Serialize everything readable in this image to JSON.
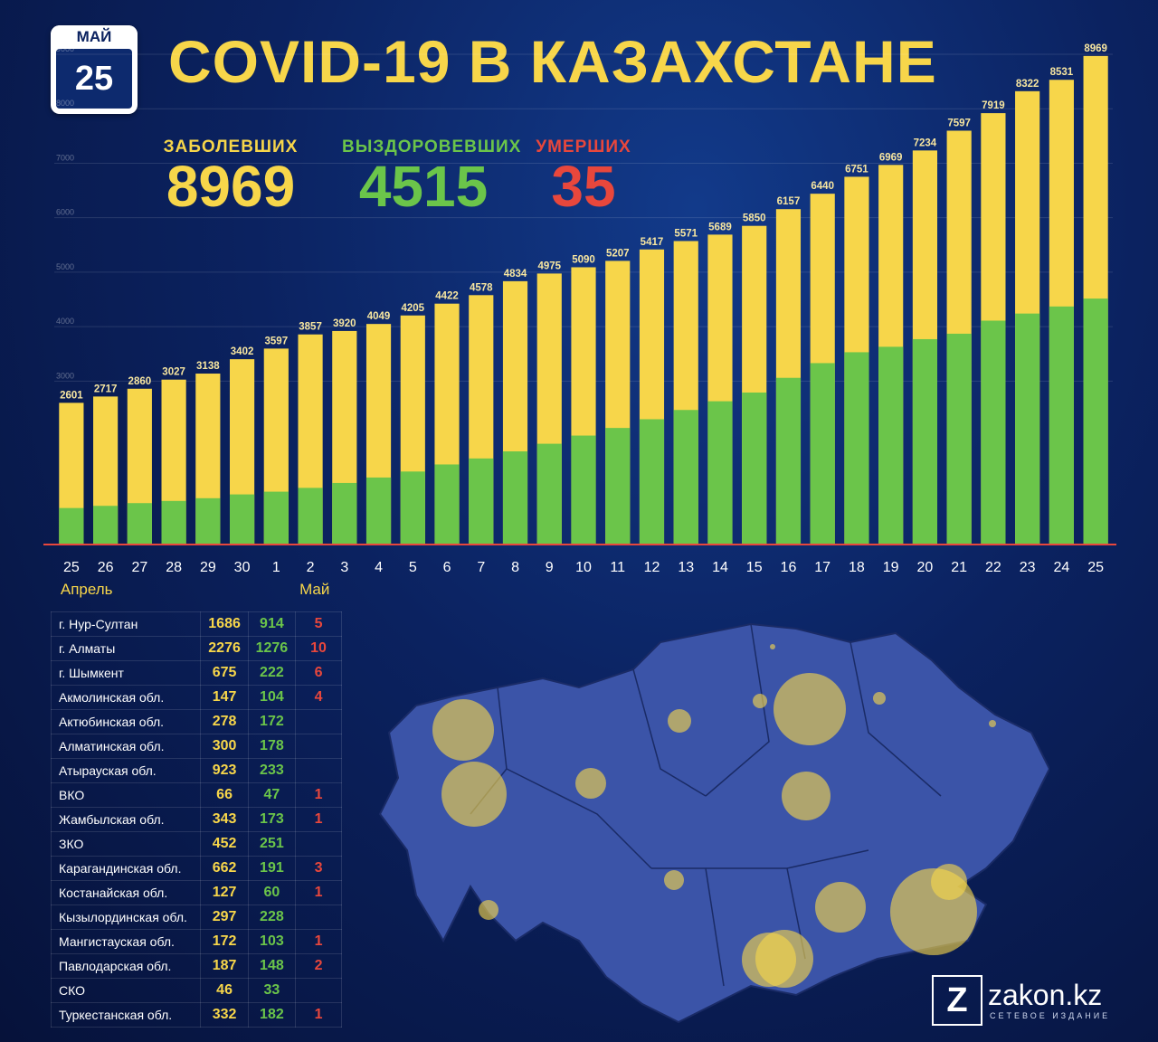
{
  "calendar": {
    "month": "МАЙ",
    "day": "25"
  },
  "title": "COVID-19 В КАЗАХСТАНЕ",
  "stats": {
    "cases": {
      "label": "ЗАБОЛЕВШИХ",
      "value": "8969"
    },
    "recovered": {
      "label": "ВЫЗДОРОВЕВШИХ",
      "value": "4515"
    },
    "deaths": {
      "label": "УМЕРШИХ",
      "value": "35"
    }
  },
  "colors": {
    "cases": "#f7d64a",
    "recovered": "#6bc54a",
    "deaths": "#e8473c",
    "background": "#0b2260"
  },
  "chart_data": {
    "type": "bar",
    "categories": [
      "25",
      "26",
      "27",
      "28",
      "29",
      "30",
      "1",
      "2",
      "3",
      "4",
      "5",
      "6",
      "7",
      "8",
      "9",
      "10",
      "11",
      "12",
      "13",
      "14",
      "15",
      "16",
      "17",
      "18",
      "19",
      "20",
      "21",
      "22",
      "23",
      "24",
      "25"
    ],
    "month_labels": [
      {
        "label": "Апрель",
        "category_index": 0
      },
      {
        "label": "Май",
        "category_index": 7
      }
    ],
    "series": [
      {
        "name": "ЗАБОЛЕВШИХ",
        "values": [
          2601,
          2717,
          2860,
          3027,
          3138,
          3402,
          3597,
          3857,
          3920,
          4049,
          4205,
          4422,
          4578,
          4834,
          4975,
          5090,
          5207,
          5417,
          5571,
          5689,
          5850,
          6157,
          6440,
          6751,
          6969,
          7234,
          7597,
          7919,
          8322,
          8531,
          8969
        ]
      },
      {
        "name": "ВЫЗДОРОВЕВШИХ",
        "values": [
          670,
          710,
          760,
          800,
          850,
          920,
          970,
          1040,
          1130,
          1230,
          1340,
          1470,
          1580,
          1710,
          1850,
          2000,
          2140,
          2300,
          2470,
          2630,
          2790,
          3060,
          3330,
          3530,
          3630,
          3770,
          3870,
          4110,
          4240,
          4370,
          4515
        ]
      }
    ],
    "ylim": [
      0,
      9000
    ],
    "grid_ticks": [
      3000,
      4000,
      5000,
      6000,
      7000,
      8000,
      9000
    ],
    "grid": true
  },
  "table": {
    "rows": [
      {
        "region": "г. Нур-Султан",
        "cases": "1686",
        "recovered": "914",
        "deaths": "5"
      },
      {
        "region": "г. Алматы",
        "cases": "2276",
        "recovered": "1276",
        "deaths": "10"
      },
      {
        "region": "г. Шымкент",
        "cases": "675",
        "recovered": "222",
        "deaths": "6"
      },
      {
        "region": "Акмолинская обл.",
        "cases": "147",
        "recovered": "104",
        "deaths": "4"
      },
      {
        "region": "Актюбинская обл.",
        "cases": "278",
        "recovered": "172",
        "deaths": ""
      },
      {
        "region": "Алматинская обл.",
        "cases": "300",
        "recovered": "178",
        "deaths": ""
      },
      {
        "region": "Атырауская обл.",
        "cases": "923",
        "recovered": "233",
        "deaths": ""
      },
      {
        "region": "ВКО",
        "cases": "66",
        "recovered": "47",
        "deaths": "1"
      },
      {
        "region": "Жамбылская обл.",
        "cases": "343",
        "recovered": "173",
        "deaths": "1"
      },
      {
        "region": "ЗКО",
        "cases": "452",
        "recovered": "251",
        "deaths": ""
      },
      {
        "region": "Карагандинская обл.",
        "cases": "662",
        "recovered": "191",
        "deaths": "3"
      },
      {
        "region": "Костанайская обл.",
        "cases": "127",
        "recovered": "60",
        "deaths": "1"
      },
      {
        "region": "Кызылординская обл.",
        "cases": "297",
        "recovered": "228",
        "deaths": ""
      },
      {
        "region": "Мангистауская обл.",
        "cases": "172",
        "recovered": "103",
        "deaths": "1"
      },
      {
        "region": "Павлодарская обл.",
        "cases": "187",
        "recovered": "148",
        "deaths": "2"
      },
      {
        "region": "СКО",
        "cases": "46",
        "recovered": "33",
        "deaths": ""
      },
      {
        "region": "Туркестанская обл.",
        "cases": "332",
        "recovered": "182",
        "deaths": "1"
      }
    ]
  },
  "logo": {
    "letter": "Z",
    "name": "zakon.kz",
    "tagline": "СЕТЕВОЕ ИЗДАНИЕ"
  }
}
